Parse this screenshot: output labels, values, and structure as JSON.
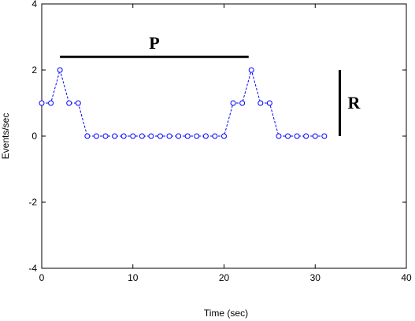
{
  "chart_data": {
    "type": "line",
    "xlabel": "Time (sec)",
    "ylabel": "Events/sec",
    "xlim": [
      0,
      40
    ],
    "ylim": [
      -4,
      4
    ],
    "xticks": [
      0,
      10,
      20,
      30,
      40
    ],
    "yticks": [
      -4,
      -2,
      0,
      2,
      4
    ],
    "grid": false,
    "series": [
      {
        "color": "#0000ff",
        "marker": "circle",
        "line_style": "dashed",
        "x": [
          0,
          1,
          2,
          3,
          4,
          5,
          6,
          7,
          8,
          9,
          10,
          11,
          12,
          13,
          14,
          15,
          16,
          17,
          18,
          19,
          20,
          21,
          22,
          23,
          24,
          25,
          26,
          27,
          28,
          29,
          30,
          31
        ],
        "y": [
          1,
          1,
          2,
          1,
          1,
          0,
          0,
          0,
          0,
          0,
          0,
          0,
          0,
          0,
          0,
          0,
          0,
          0,
          0,
          0,
          0,
          1,
          1,
          2,
          1,
          1,
          0,
          0,
          0,
          0,
          0,
          0
        ]
      }
    ],
    "annotations": [
      {
        "label": "P",
        "kind": "horizontal-bar",
        "x_start": 2,
        "x_end": 22.7,
        "y": 2.4
      },
      {
        "label": "R",
        "kind": "vertical-bar",
        "x": 32.7,
        "y_start": 0,
        "y_end": 2
      }
    ]
  }
}
